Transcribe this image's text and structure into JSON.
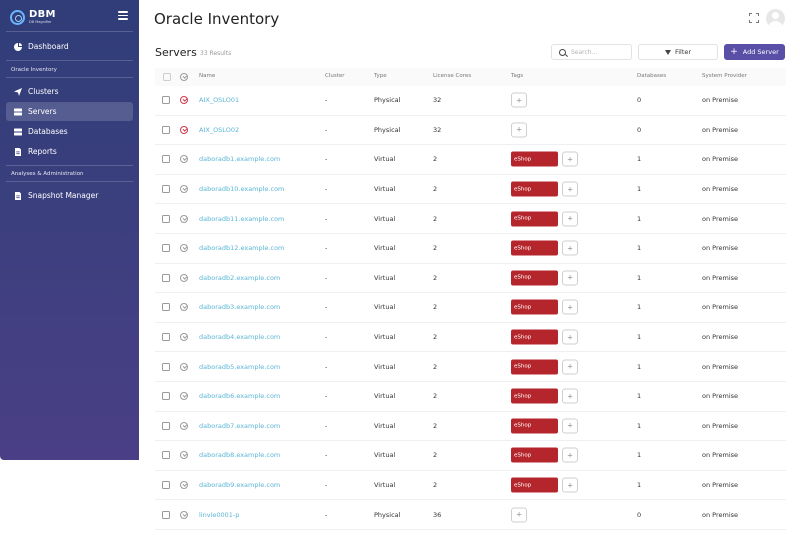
{
  "brand": {
    "name": "DBM",
    "sub": "DB Magnifier"
  },
  "sidebar": {
    "items": [
      {
        "key": "dashboard",
        "label": "Dashboard",
        "icon": "pie-chart-icon"
      },
      {
        "key": "clusters",
        "label": "Clusters",
        "icon": "send-icon"
      },
      {
        "key": "servers",
        "label": "Servers",
        "icon": "server-icon",
        "active": true
      },
      {
        "key": "databases",
        "label": "Databases",
        "icon": "database-icon"
      },
      {
        "key": "reports",
        "label": "Reports",
        "icon": "document-icon"
      },
      {
        "key": "snapshot",
        "label": "Snapshot Manager",
        "icon": "document-icon"
      }
    ],
    "sections": {
      "oracle": "Oracle Inventory",
      "analyses": "Analyses & Administration"
    }
  },
  "header": {
    "title": "Oracle Inventory"
  },
  "toolbar": {
    "section_title": "Servers",
    "results": "33 Results",
    "search_placeholder": "Search...",
    "filter_label": "Filter",
    "add_label": "Add Server"
  },
  "table": {
    "columns": {
      "name": "Name",
      "cluster": "Cluster",
      "type": "Type",
      "cores": "License Cores",
      "tags": "Tags",
      "databases": "Databases",
      "provider": "System Provider"
    },
    "rows": [
      {
        "name": "AIX_OSLO01",
        "cluster": "-",
        "type": "Physical",
        "cores": "32",
        "tag": "",
        "databases": "0",
        "provider": "on Premise",
        "status": "red"
      },
      {
        "name": "AIX_OSLO02",
        "cluster": "-",
        "type": "Physical",
        "cores": "32",
        "tag": "",
        "databases": "0",
        "provider": "on Premise",
        "status": "red"
      },
      {
        "name": "daboradb1.example.com",
        "cluster": "-",
        "type": "Virtual",
        "cores": "2",
        "tag": "eShop",
        "databases": "1",
        "provider": "on Premise",
        "status": "gray"
      },
      {
        "name": "daboradb10.example.com",
        "cluster": "-",
        "type": "Virtual",
        "cores": "2",
        "tag": "eShop",
        "databases": "1",
        "provider": "on Premise",
        "status": "gray"
      },
      {
        "name": "daboradb11.example.com",
        "cluster": "-",
        "type": "Virtual",
        "cores": "2",
        "tag": "eShop",
        "databases": "1",
        "provider": "on Premise",
        "status": "gray"
      },
      {
        "name": "daboradb12.example.com",
        "cluster": "-",
        "type": "Virtual",
        "cores": "2",
        "tag": "eShop",
        "databases": "1",
        "provider": "on Premise",
        "status": "gray"
      },
      {
        "name": "daboradb2.example.com",
        "cluster": "-",
        "type": "Virtual",
        "cores": "2",
        "tag": "eShop",
        "databases": "1",
        "provider": "on Premise",
        "status": "gray"
      },
      {
        "name": "daboradb3.example.com",
        "cluster": "-",
        "type": "Virtual",
        "cores": "2",
        "tag": "eShop",
        "databases": "1",
        "provider": "on Premise",
        "status": "gray"
      },
      {
        "name": "daboradb4.example.com",
        "cluster": "-",
        "type": "Virtual",
        "cores": "2",
        "tag": "eShop",
        "databases": "1",
        "provider": "on Premise",
        "status": "gray"
      },
      {
        "name": "daboradb5.example.com",
        "cluster": "-",
        "type": "Virtual",
        "cores": "2",
        "tag": "eShop",
        "databases": "1",
        "provider": "on Premise",
        "status": "gray"
      },
      {
        "name": "daboradb6.example.com",
        "cluster": "-",
        "type": "Virtual",
        "cores": "2",
        "tag": "eShop",
        "databases": "1",
        "provider": "on Premise",
        "status": "gray"
      },
      {
        "name": "daboradb7.example.com",
        "cluster": "-",
        "type": "Virtual",
        "cores": "2",
        "tag": "eShop",
        "databases": "1",
        "provider": "on Premise",
        "status": "gray"
      },
      {
        "name": "daboradb8.example.com",
        "cluster": "-",
        "type": "Virtual",
        "cores": "2",
        "tag": "eShop",
        "databases": "1",
        "provider": "on Premise",
        "status": "gray"
      },
      {
        "name": "daboradb9.example.com",
        "cluster": "-",
        "type": "Virtual",
        "cores": "2",
        "tag": "eShop",
        "databases": "1",
        "provider": "on Premise",
        "status": "gray"
      },
      {
        "name": "linvie0001-p",
        "cluster": "-",
        "type": "Physical",
        "cores": "36",
        "tag": "",
        "databases": "0",
        "provider": "on Premise",
        "status": "gray"
      }
    ]
  },
  "colors": {
    "accent": "#5a4fa6",
    "tag": "#b5262c",
    "link": "#5bb6d6",
    "alert": "#d23a4a"
  }
}
